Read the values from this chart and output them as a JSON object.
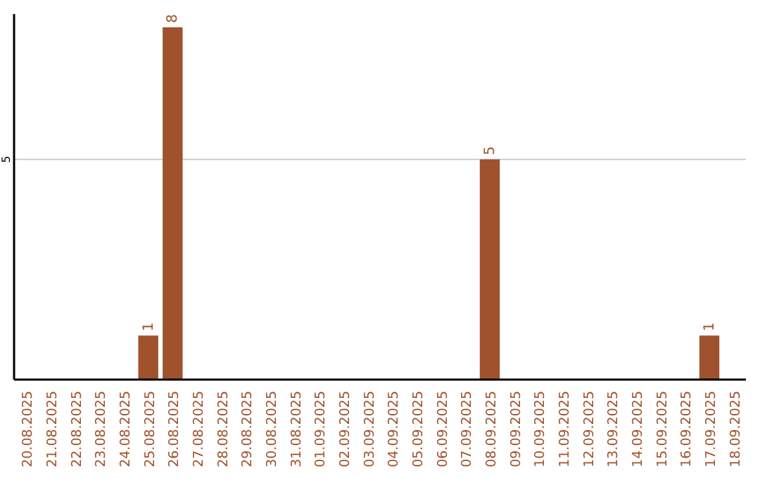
{
  "chart_data": {
    "type": "bar",
    "categories": [
      "20.08.2025",
      "21.08.2025",
      "22.08.2025",
      "23.08.2025",
      "24.08.2025",
      "25.08.2025",
      "26.08.2025",
      "27.08.2025",
      "28.08.2025",
      "29.08.2025",
      "30.08.2025",
      "31.08.2025",
      "01.09.2025",
      "02.09.2025",
      "03.09.2025",
      "04.09.2025",
      "05.09.2025",
      "06.09.2025",
      "07.09.2025",
      "08.09.2025",
      "09.09.2025",
      "10.09.2025",
      "11.09.2025",
      "12.09.2025",
      "13.09.2025",
      "14.09.2025",
      "15.09.2025",
      "16.09.2025",
      "17.09.2025",
      "18.09.2025"
    ],
    "values": [
      0,
      0,
      0,
      0,
      0,
      1,
      8,
      0,
      0,
      0,
      0,
      0,
      0,
      0,
      0,
      0,
      0,
      0,
      0,
      5,
      0,
      0,
      0,
      0,
      0,
      0,
      0,
      0,
      1,
      0
    ],
    "value_labels": [
      null,
      null,
      null,
      null,
      null,
      "1",
      "8",
      null,
      null,
      null,
      null,
      null,
      null,
      null,
      null,
      null,
      null,
      null,
      null,
      "5",
      null,
      null,
      null,
      null,
      null,
      null,
      null,
      null,
      "1",
      null
    ],
    "color": "#a0522d",
    "ylim": [
      0,
      8.3
    ],
    "yticks": [
      5
    ],
    "grid": "y"
  }
}
